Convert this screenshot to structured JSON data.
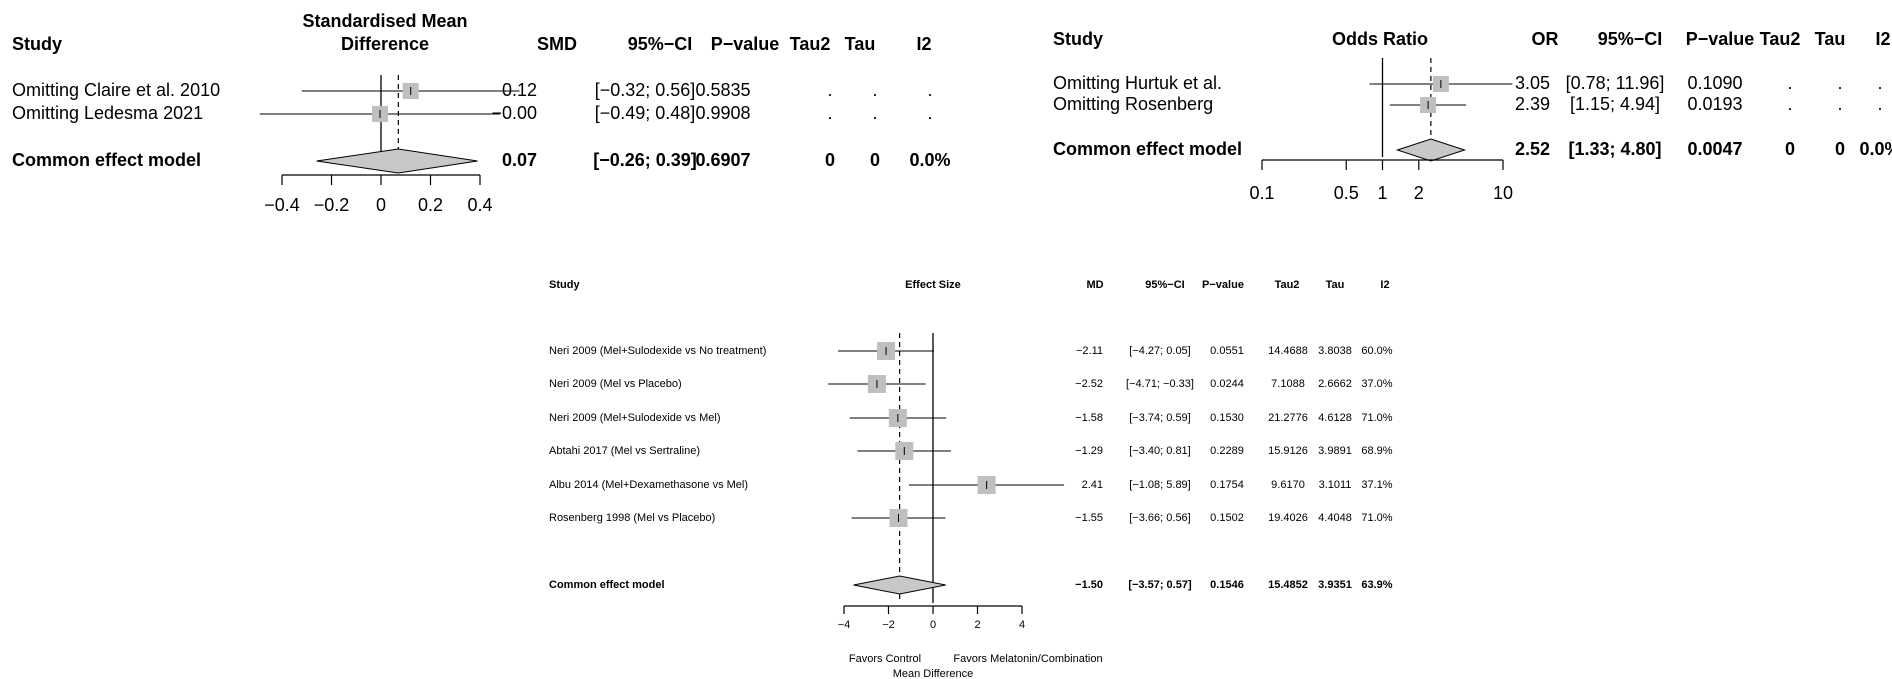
{
  "chart_data": [
    {
      "type": "forest",
      "headers": {
        "study": "Study",
        "effect_line1": "Standardised Mean",
        "effect_line2": "Difference",
        "est": "SMD",
        "ci": "95%−CI",
        "p": "P−value",
        "tau2": "Tau2",
        "tau": "Tau",
        "i2": "I2"
      },
      "rows": [
        {
          "study": "Omitting Claire et al. 2010",
          "est": 0.12,
          "lo": -0.32,
          "hi": 0.56,
          "est_text": "0.12",
          "ci_text": "[−0.32; 0.56]",
          "p_text": "0.5835",
          "tau2_text": ".",
          "tau_text": ".",
          "i2_text": "."
        },
        {
          "study": "Omitting Ledesma 2021",
          "est": -0.004,
          "lo": -0.49,
          "hi": 0.48,
          "est_text": "−0.00",
          "ci_text": "[−0.49; 0.48]",
          "p_text": "0.9908",
          "tau2_text": ".",
          "tau_text": ".",
          "i2_text": "."
        }
      ],
      "summary": {
        "study": "Common effect model",
        "est": 0.07,
        "lo": -0.26,
        "hi": 0.39,
        "est_text": "0.07",
        "ci_text": "[−0.26; 0.39]",
        "p_text": "0.6907",
        "tau2_text": "0",
        "tau_text": "0",
        "i2_text": "0.0%"
      },
      "axis": {
        "scale": "linear",
        "xlim": [
          -0.4,
          0.4
        ],
        "null_value": 0,
        "ticks": [
          -0.4,
          -0.2,
          0,
          0.2,
          0.4
        ],
        "tick_labels": [
          "−0.4",
          "−0.2",
          "0",
          "0.2",
          "0.4"
        ]
      }
    },
    {
      "type": "forest",
      "headers": {
        "study": "Study",
        "effect": "Odds Ratio",
        "est": "OR",
        "ci": "95%−CI",
        "p": "P−value",
        "tau2": "Tau2",
        "tau": "Tau",
        "i2": "I2"
      },
      "rows": [
        {
          "study": "Omitting Hurtuk et al.",
          "est": 3.05,
          "lo": 0.78,
          "hi": 11.96,
          "est_text": "3.05",
          "ci_text": "[0.78; 11.96]",
          "p_text": "0.1090",
          "tau2_text": ".",
          "tau_text": ".",
          "i2_text": "."
        },
        {
          "study": "Omitting Rosenberg",
          "est": 2.39,
          "lo": 1.15,
          "hi": 4.94,
          "est_text": "2.39",
          "ci_text": "[1.15;  4.94]",
          "p_text": "0.0193",
          "tau2_text": ".",
          "tau_text": ".",
          "i2_text": "."
        }
      ],
      "summary": {
        "study": "Common effect model",
        "est": 2.52,
        "lo": 1.33,
        "hi": 4.8,
        "est_text": "2.52",
        "ci_text": "[1.33;  4.80]",
        "p_text": "0.0047",
        "tau2_text": "0",
        "tau_text": "0",
        "i2_text": "0.0%"
      },
      "axis": {
        "scale": "log",
        "xlim": [
          0.1,
          10
        ],
        "null_value": 1,
        "ticks": [
          0.1,
          0.5,
          1,
          2,
          10
        ],
        "tick_labels": [
          "0.1",
          "0.5",
          "1",
          "2",
          "10"
        ]
      }
    },
    {
      "type": "forest",
      "headers": {
        "study": "Study",
        "effect": "Effect Size",
        "est": "MD",
        "ci": "95%−CI",
        "p": "P−value",
        "tau2": "Tau2",
        "tau": "Tau",
        "i2": "I2"
      },
      "rows": [
        {
          "study": "Neri 2009 (Mel+Sulodexide vs No treatment)",
          "est": -2.11,
          "lo": -4.27,
          "hi": 0.05,
          "est_text": "−2.11",
          "ci_text": "[−4.27;  0.05]",
          "p_text": "0.0551",
          "tau2_text": "14.4688",
          "tau_text": "3.8038",
          "i2_text": "60.0%"
        },
        {
          "study": "Neri 2009 (Mel vs Placebo)",
          "est": -2.52,
          "lo": -4.71,
          "hi": -0.33,
          "est_text": "−2.52",
          "ci_text": "[−4.71; −0.33]",
          "p_text": "0.0244",
          "tau2_text": "7.1088",
          "tau_text": "2.6662",
          "i2_text": "37.0%"
        },
        {
          "study": "Neri 2009 (Mel+Sulodexide vs Mel)",
          "est": -1.58,
          "lo": -3.74,
          "hi": 0.59,
          "est_text": "−1.58",
          "ci_text": "[−3.74;  0.59]",
          "p_text": "0.1530",
          "tau2_text": "21.2776",
          "tau_text": "4.6128",
          "i2_text": "71.0%"
        },
        {
          "study": "Abtahi 2017 (Mel vs Sertraline)",
          "est": -1.29,
          "lo": -3.4,
          "hi": 0.81,
          "est_text": "−1.29",
          "ci_text": "[−3.40;  0.81]",
          "p_text": "0.2289",
          "tau2_text": "15.9126",
          "tau_text": "3.9891",
          "i2_text": "68.9%"
        },
        {
          "study": "Albu 2014 (Mel+Dexamethasone vs Mel)",
          "est": 2.41,
          "lo": -1.08,
          "hi": 5.89,
          "est_text": "2.41",
          "ci_text": "[−1.08;  5.89]",
          "p_text": "0.1754",
          "tau2_text": "9.6170",
          "tau_text": "3.1011",
          "i2_text": "37.1%"
        },
        {
          "study": "Rosenberg 1998 (Mel vs Placebo)",
          "est": -1.55,
          "lo": -3.66,
          "hi": 0.56,
          "est_text": "−1.55",
          "ci_text": "[−3.66;  0.56]",
          "p_text": "0.1502",
          "tau2_text": "19.4026",
          "tau_text": "4.4048",
          "i2_text": "71.0%"
        }
      ],
      "summary": {
        "study": "Common effect model",
        "est": -1.5,
        "lo": -3.57,
        "hi": 0.57,
        "est_text": "−1.50",
        "ci_text": "[−3.57;  0.57]",
        "p_text": "0.1546",
        "tau2_text": "15.4852",
        "tau_text": "3.9351",
        "i2_text": "63.9%"
      },
      "axis": {
        "scale": "linear",
        "xlim": [
          -4,
          4
        ],
        "null_value": 0,
        "ticks": [
          -4,
          -2,
          0,
          2,
          4
        ],
        "tick_labels": [
          "−4",
          "−2",
          "0",
          "2",
          "4"
        ],
        "left_label": "Favors Control",
        "right_label": "Favors Melatonin/Combination",
        "xlabel": "Mean Difference"
      }
    }
  ]
}
